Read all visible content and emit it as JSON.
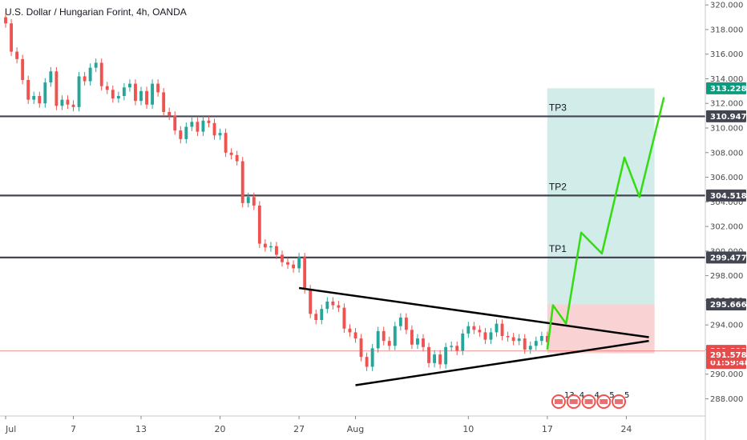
{
  "header": {
    "title": "U.S. Dollar / Hungarian Forint, 4h, OANDA"
  },
  "colors": {
    "up": "#26a69a",
    "down": "#ef5350",
    "tp_zone": "#b2dfdb",
    "sl_zone": "#f8c8c8",
    "projection": "#33dd11",
    "level": "#434651",
    "badge_dark": "#434651",
    "badge_green": "#0e9a7e",
    "badge_red": "#e54b4b"
  },
  "chart_data": {
    "type": "candlestick",
    "symbol": "USDHUF",
    "timeframe": "4h",
    "source": "OANDA",
    "ylim": [
      286.6,
      320.4
    ],
    "y_ticks": [
      "320.000",
      "318.000",
      "316.000",
      "314.000",
      "312.000",
      "310.000",
      "308.000",
      "306.000",
      "304.000",
      "302.000",
      "300.000",
      "298.000",
      "296.000",
      "294.000",
      "292.000",
      "290.000",
      "288.000"
    ],
    "x_labels": [
      {
        "label": "Jul",
        "x": 0
      },
      {
        "label": "7",
        "x": 36
      },
      {
        "label": "13",
        "x": 72
      },
      {
        "label": "20",
        "x": 114
      },
      {
        "label": "27",
        "x": 156
      },
      {
        "label": "Aug",
        "x": 186
      },
      {
        "label": "10",
        "x": 246
      },
      {
        "label": "17",
        "x": 288
      },
      {
        "label": "24",
        "x": 330
      }
    ],
    "x_axis": {
      "min": -3,
      "max": 372
    },
    "candles_close_path": [
      [
        0,
        318.5
      ],
      [
        3,
        316.2
      ],
      [
        6,
        315.6
      ],
      [
        9,
        313.9
      ],
      [
        12,
        312.3
      ],
      [
        15,
        312.6
      ],
      [
        18,
        312.0
      ],
      [
        21,
        313.7
      ],
      [
        24,
        314.6
      ],
      [
        27,
        311.8
      ],
      [
        30,
        312.3
      ],
      [
        33,
        311.9
      ],
      [
        36,
        311.7
      ],
      [
        39,
        314.2
      ],
      [
        42,
        313.8
      ],
      [
        45,
        314.9
      ],
      [
        48,
        315.3
      ],
      [
        51,
        313.4
      ],
      [
        54,
        313.1
      ],
      [
        57,
        312.4
      ],
      [
        60,
        312.6
      ],
      [
        63,
        313.3
      ],
      [
        66,
        313.6
      ],
      [
        69,
        312.2
      ],
      [
        72,
        313.0
      ],
      [
        75,
        311.9
      ],
      [
        78,
        313.6
      ],
      [
        81,
        312.9
      ],
      [
        84,
        311.3
      ],
      [
        87,
        311.0
      ],
      [
        90,
        309.8
      ],
      [
        93,
        309.1
      ],
      [
        96,
        310.1
      ],
      [
        99,
        310.5
      ],
      [
        102,
        309.7
      ],
      [
        105,
        310.6
      ],
      [
        108,
        310.4
      ],
      [
        111,
        309.4
      ],
      [
        114,
        309.6
      ],
      [
        117,
        308.0
      ],
      [
        120,
        307.8
      ],
      [
        123,
        307.3
      ],
      [
        126,
        303.9
      ],
      [
        129,
        304.4
      ],
      [
        132,
        303.7
      ],
      [
        135,
        300.6
      ],
      [
        138,
        300.3
      ],
      [
        141,
        300.4
      ],
      [
        144,
        299.7
      ],
      [
        147,
        299.1
      ],
      [
        150,
        298.9
      ],
      [
        153,
        298.6
      ],
      [
        156,
        299.5
      ],
      [
        159,
        296.9
      ],
      [
        162,
        294.9
      ],
      [
        165,
        294.4
      ],
      [
        168,
        295.3
      ],
      [
        171,
        295.9
      ],
      [
        174,
        295.6
      ],
      [
        177,
        295.4
      ],
      [
        180,
        293.7
      ],
      [
        183,
        293.4
      ],
      [
        186,
        292.9
      ],
      [
        189,
        291.4
      ],
      [
        192,
        290.6
      ],
      [
        195,
        292.1
      ],
      [
        198,
        293.5
      ],
      [
        201,
        292.7
      ],
      [
        204,
        292.3
      ],
      [
        207,
        293.9
      ],
      [
        210,
        294.6
      ],
      [
        213,
        293.6
      ],
      [
        216,
        292.4
      ],
      [
        219,
        292.9
      ],
      [
        222,
        292.2
      ],
      [
        225,
        290.9
      ],
      [
        228,
        291.6
      ],
      [
        231,
        290.8
      ],
      [
        234,
        292.2
      ],
      [
        237,
        292.3
      ],
      [
        240,
        291.9
      ],
      [
        243,
        293.3
      ],
      [
        246,
        293.9
      ],
      [
        249,
        293.6
      ],
      [
        252,
        293.4
      ],
      [
        255,
        292.8
      ],
      [
        258,
        293.4
      ],
      [
        261,
        294.1
      ],
      [
        264,
        293.1
      ],
      [
        267,
        293.0
      ],
      [
        270,
        292.7
      ],
      [
        273,
        292.9
      ],
      [
        276,
        292.0
      ],
      [
        279,
        292.3
      ],
      [
        282,
        292.7
      ],
      [
        285,
        293.1
      ],
      [
        288,
        292.6
      ]
    ],
    "levels": [
      {
        "name": "TP3",
        "value": 310.947,
        "label": "310.947"
      },
      {
        "name": "TP2",
        "value": 304.518,
        "label": "304.518"
      },
      {
        "name": "TP1",
        "value": 299.477,
        "label": "299.477"
      }
    ],
    "entry_line": {
      "value": 291.892,
      "label": "291.892",
      "countdown": "01:59:48"
    },
    "target_label": {
      "value": 313.228,
      "label": "313.228"
    },
    "stop_label": {
      "value": 295.666,
      "label": "295.666"
    },
    "low_label": {
      "value": 291.578,
      "label": "291.578"
    },
    "position_box": {
      "x_start": 288,
      "x_end": 345,
      "entry": 291.892,
      "target": 313.228,
      "stop": 295.666
    },
    "triangle": {
      "upper": [
        [
          156,
          297.0
        ],
        [
          342,
          293.0
        ]
      ],
      "lower": [
        [
          186,
          289.1
        ],
        [
          342,
          292.7
        ]
      ]
    },
    "projection": [
      [
        288,
        292.0
      ],
      [
        291,
        295.6
      ],
      [
        298,
        294.1
      ],
      [
        306,
        301.5
      ],
      [
        317,
        299.8
      ],
      [
        329,
        307.6
      ],
      [
        337,
        304.4
      ],
      [
        350,
        312.5
      ]
    ],
    "events": [
      {
        "x": 294,
        "count": "13"
      },
      {
        "x": 302,
        "count": "4"
      },
      {
        "x": 310,
        "count": "4"
      },
      {
        "x": 318,
        "count": "5"
      },
      {
        "x": 326,
        "count": "5"
      }
    ]
  }
}
